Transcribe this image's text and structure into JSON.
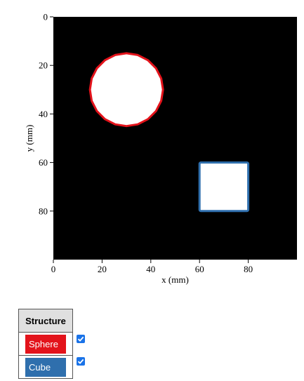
{
  "chart_data": {
    "type": "image-segmentation",
    "xlabel": "x (mm)",
    "ylabel": "y (mm)",
    "xlim": [
      0,
      100
    ],
    "ylim": [
      0,
      100
    ],
    "y_inverted": true,
    "x_ticks": [
      0,
      20,
      40,
      60,
      80
    ],
    "y_ticks": [
      0,
      20,
      40,
      60,
      80
    ],
    "background_color": "#000000",
    "structures": [
      {
        "name": "Sphere",
        "shape": "circle",
        "center": [
          30,
          30
        ],
        "radius": 15,
        "fill": "#ffffff",
        "outline_color": "#e3131b",
        "visible": true
      },
      {
        "name": "Cube",
        "shape": "square",
        "x_range": [
          60,
          80
        ],
        "y_range": [
          60,
          80
        ],
        "fill": "#ffffff",
        "outline_color": "#2f6fad",
        "visible": true
      }
    ]
  },
  "legend": {
    "header": "Structure",
    "items": [
      {
        "label": "Sphere",
        "color": "#e3131b",
        "checked": true
      },
      {
        "label": "Cube",
        "color": "#2f6fad",
        "checked": true
      }
    ]
  }
}
